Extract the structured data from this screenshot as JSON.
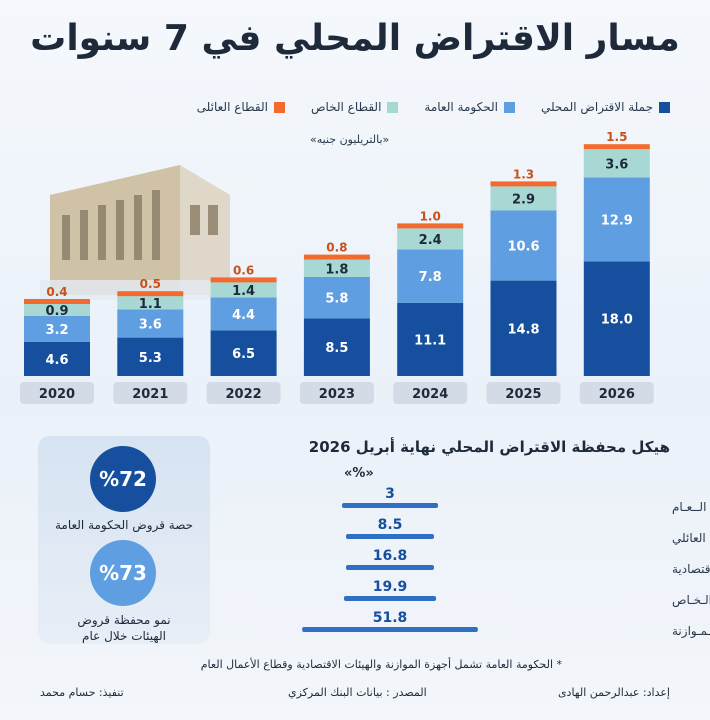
{
  "title": "مسار الاقتراض المحلي في 7 سنوات",
  "legend": [
    {
      "label": "جملة الاقتراض المحلي",
      "color": "#154f9e"
    },
    {
      "label": "الحكومة العامة",
      "color": "#5f9ee0"
    },
    {
      "label": "القطاع الخاص",
      "color": "#a8d8d4"
    },
    {
      "label": "القطاع العائلى",
      "color": "#f26a2e"
    }
  ],
  "unit": "«بالتريليون جنيه»",
  "chart_data": [
    {
      "type": "bar",
      "stacked": true,
      "categories": [
        "2020",
        "2021",
        "2022",
        "2023",
        "2024",
        "2025",
        "2026"
      ],
      "series": [
        {
          "name": "جملة الاقتراض المحلي",
          "values": [
            4.6,
            5.3,
            6.5,
            8.5,
            11.1,
            14.8,
            18.0
          ]
        },
        {
          "name": "الحكومة العامة",
          "values": [
            3.2,
            3.6,
            4.4,
            5.8,
            7.8,
            10.6,
            12.9
          ]
        },
        {
          "name": "القطاع الخاص",
          "values": [
            0.9,
            1.1,
            1.4,
            1.8,
            2.4,
            2.9,
            3.6
          ]
        },
        {
          "name": "القطاع العائلى",
          "values": [
            0.4,
            0.5,
            0.6,
            0.8,
            1.0,
            1.3,
            1.5
          ]
        }
      ]
    },
    {
      "type": "bar",
      "orientation": "horizontal",
      "title": "هيكل محفظة الاقتراض المحلي نهاية أبريل 2026",
      "unit": "«%»",
      "categories": [
        "القطــاع الــعـام",
        "القطــاع العائلي",
        "الهيئات الاقتصادية",
        "القطــاع الـخـاص",
        "أجـهــزة الـمـوازنة"
      ],
      "values": [
        3,
        8.5,
        16.8,
        19.9,
        51.8
      ]
    }
  ],
  "highlights": [
    {
      "value": "%72",
      "label": "حصة قروض الحكومة العامة"
    },
    {
      "value": "%73",
      "label": "نمو محفظة قروض الهيئات خلال عام"
    }
  ],
  "footnote": "* الحكومة العامة تشمل أجهزة الموازنة والهيئات الاقتصادية وقطاع الأعمال العام",
  "credits": {
    "prepared": "إعداد: عبدالرحمن الهادى",
    "source": "المصدر : بيانات البنك المركزي",
    "design": "تنفيذ: حسام محمد"
  }
}
